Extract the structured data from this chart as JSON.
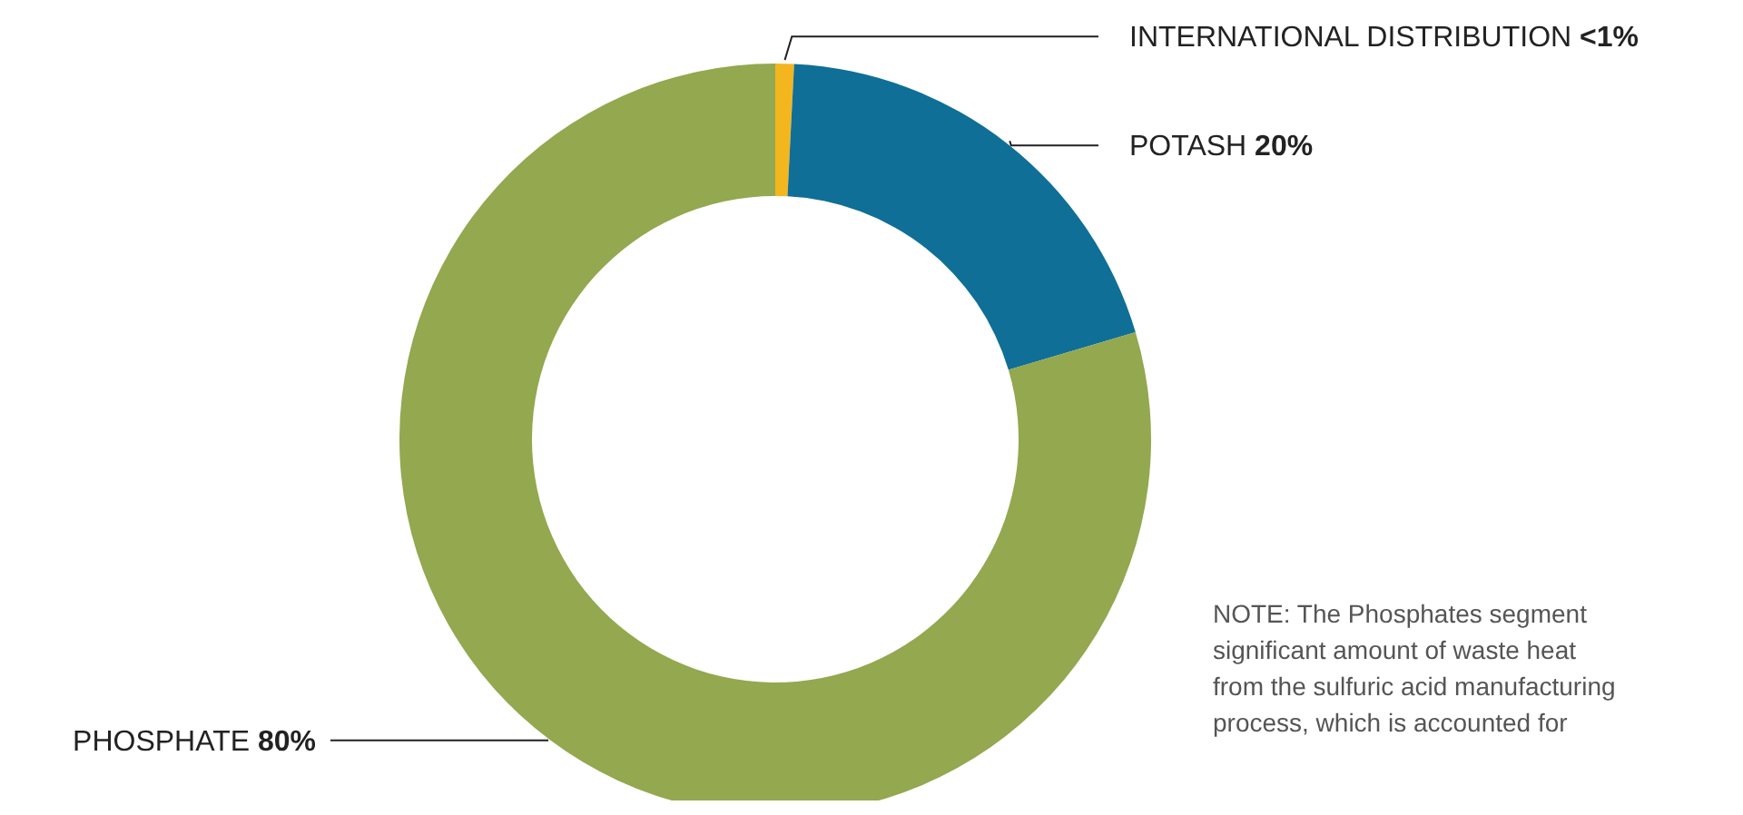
{
  "chart_data": {
    "type": "donut",
    "categories": [
      "INTERNATIONAL DISTRIBUTION",
      "POTASH",
      "PHOSPHATE"
    ],
    "values": [
      0.8,
      19.6,
      79.6
    ],
    "value_labels": [
      "<1%",
      "20%",
      "80%"
    ],
    "colors": [
      "#f3b61f",
      "#0f6f96",
      "#93a84f"
    ],
    "annotations": [
      "NOTE: The Phosphates segment significant amount of waste heat from the sulfuric acid manufacturing process, which is accounted for"
    ]
  }
}
